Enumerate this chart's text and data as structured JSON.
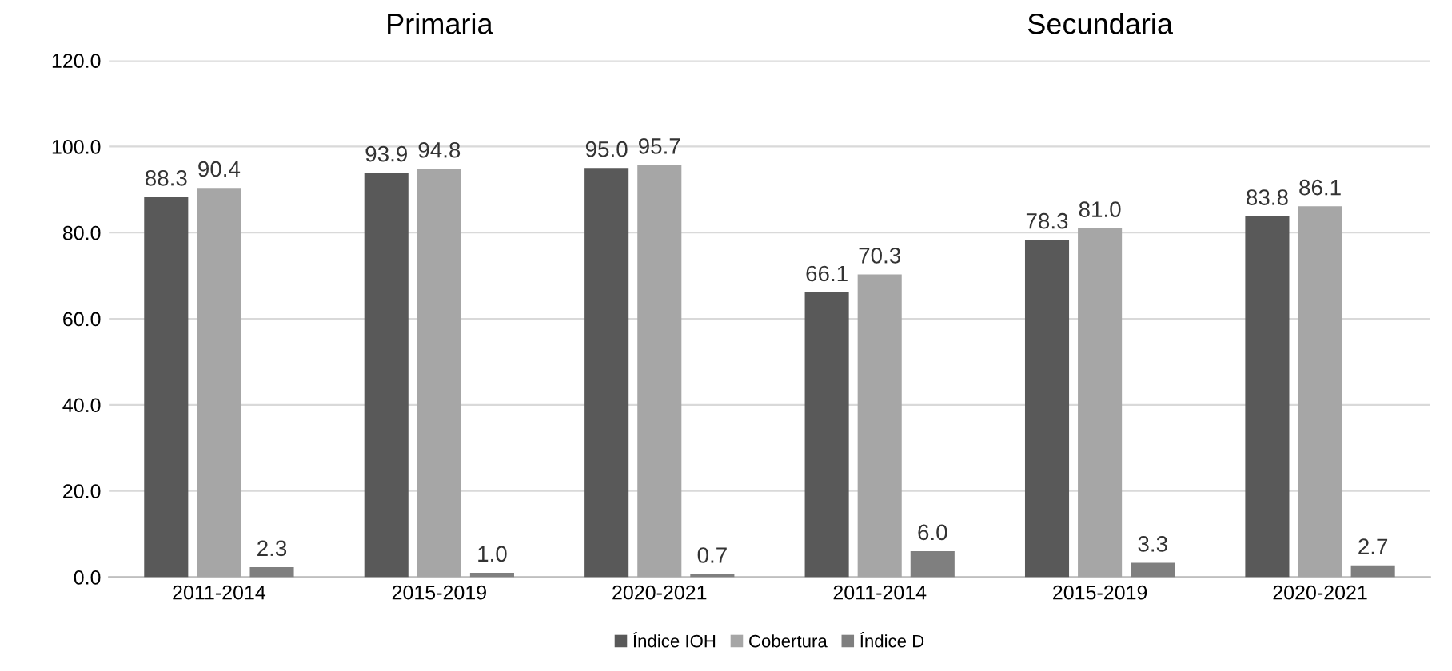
{
  "chart_data": {
    "type": "bar",
    "categories": [
      "2011-2014",
      "2015-2019",
      "2020-2021",
      "2011-2014",
      "2015-2019",
      "2020-2021"
    ],
    "series": [
      {
        "name": "Índice IOH",
        "color": "#595959",
        "values": [
          88.3,
          93.9,
          95,
          66.1,
          78.3,
          83.8
        ],
        "value_labels": [
          "88.3",
          "93.9",
          "95.0",
          "66.1",
          "78.3",
          "83.8"
        ]
      },
      {
        "name": "Cobertura",
        "color": "#a6a6a6",
        "values": [
          90.4,
          94.8,
          95.7,
          70.3,
          81,
          86.1
        ],
        "value_labels": [
          "90.4",
          "94.8",
          "95.7",
          "70.3",
          "81.0",
          "86.1"
        ]
      },
      {
        "name": "Índice D",
        "color": "#7f7f7f",
        "values": [
          2.3,
          1,
          0.7,
          6,
          3.3,
          2.7
        ],
        "value_labels": [
          "2.3",
          "1.0",
          "0.7",
          "6.0",
          "3.3",
          "2.7"
        ]
      }
    ],
    "annotations": [
      "Primaria",
      "Secundaria"
    ],
    "ylim": [
      0,
      120
    ],
    "yticks": [
      {
        "value": 0,
        "label": "0.0"
      },
      {
        "value": 20,
        "label": "20.0"
      },
      {
        "value": 40,
        "label": "40.0"
      },
      {
        "value": 60,
        "label": "60.0"
      },
      {
        "value": 80,
        "label": "80.0"
      },
      {
        "value": 100,
        "label": "100.0"
      },
      {
        "value": 120,
        "label": "120.0"
      }
    ],
    "grid": "y",
    "legend": "bottom"
  }
}
